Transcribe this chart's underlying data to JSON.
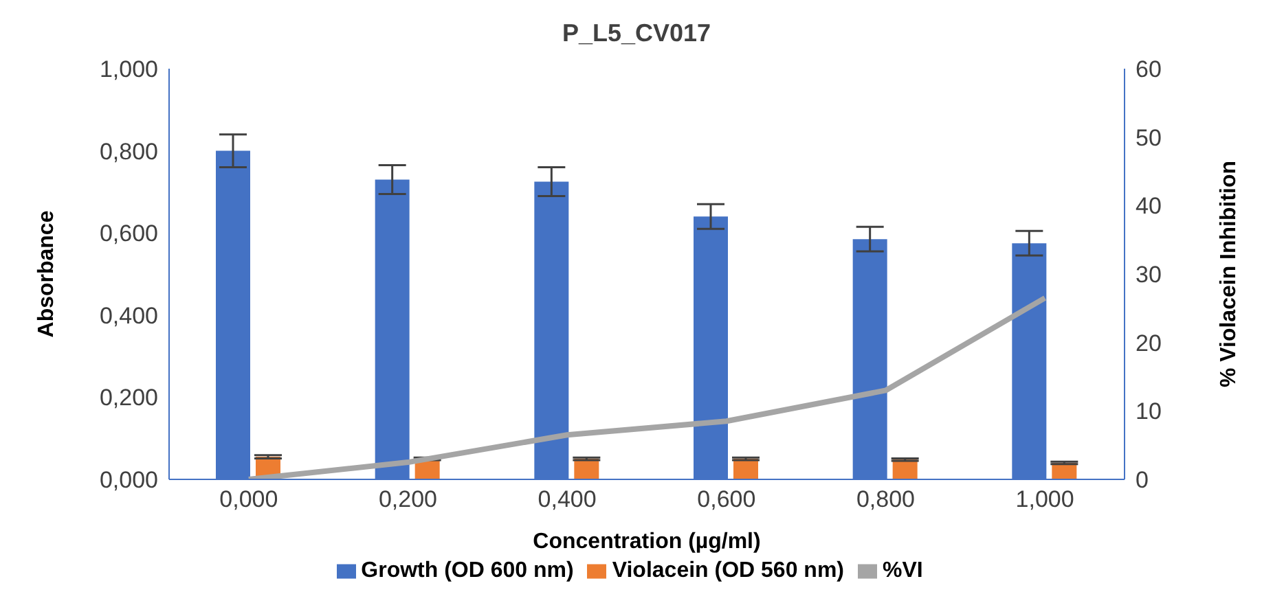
{
  "chart_data": {
    "type": "bar",
    "title": "P_L5_CV017",
    "xlabel": "Concentration (µg/ml)",
    "ylabel": "Absorbance",
    "y2label": "% Violacein Inhibition",
    "categories": [
      "0,000",
      "0,200",
      "0,400",
      "0,600",
      "0,800",
      "1,000"
    ],
    "series": [
      {
        "name": "Growth (OD 600 nm)",
        "color": "#4472c4",
        "values": [
          0.8,
          0.73,
          0.725,
          0.64,
          0.585,
          0.575
        ],
        "errors": [
          0.04,
          0.035,
          0.035,
          0.03,
          0.03,
          0.03
        ]
      },
      {
        "name": "Violacein (OD 560 nm)",
        "color": "#ed7d31",
        "values": [
          0.055,
          0.05,
          0.05,
          0.05,
          0.048,
          0.04
        ],
        "errors": [
          0.004,
          0.003,
          0.003,
          0.003,
          0.003,
          0.003
        ]
      },
      {
        "name": "%VI",
        "type": "line",
        "axis": "y2",
        "color": "#a5a5a5",
        "values": [
          0,
          2.5,
          6.5,
          8.5,
          13,
          26.5
        ]
      }
    ],
    "ylim": [
      0,
      1
    ],
    "yticks": [
      {
        "value": 0,
        "label": "0,000"
      },
      {
        "value": 0.2,
        "label": "0,200"
      },
      {
        "value": 0.4,
        "label": "0,400"
      },
      {
        "value": 0.6,
        "label": "0,600"
      },
      {
        "value": 0.8,
        "label": "0,800"
      },
      {
        "value": 1,
        "label": "1,000"
      }
    ],
    "y2lim": [
      0,
      60
    ],
    "y2ticks": [
      0,
      10,
      20,
      30,
      40,
      50,
      60
    ],
    "legend": "bottom",
    "marker": "none"
  }
}
